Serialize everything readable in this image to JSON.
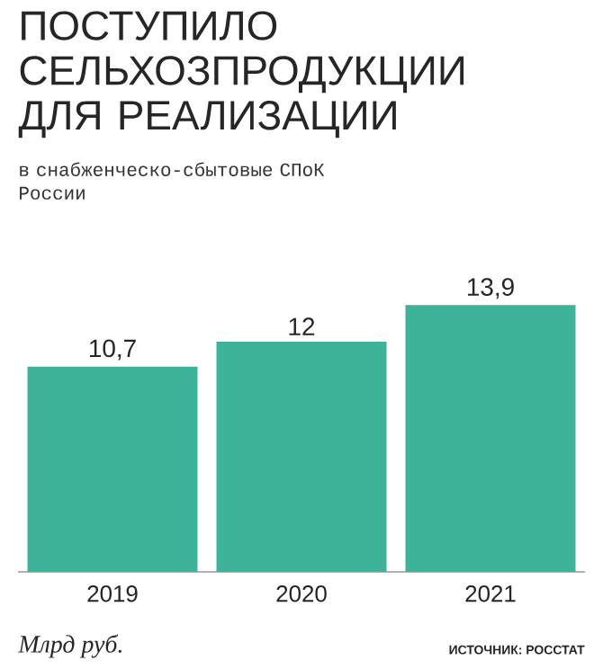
{
  "chart_data": {
    "type": "bar",
    "title": "ПОСТУПИЛО СЕЛЬХОЗПРОДУКЦИИ ДЛЯ РЕАЛИЗАЦИИ",
    "subtitle": "в снабженческо-сбытовые СПоК России",
    "categories": [
      "2019",
      "2020",
      "2021"
    ],
    "values": [
      10.7,
      12,
      13.9
    ],
    "value_labels": [
      "10,7",
      "12",
      "13,9"
    ],
    "color": "#3db39a",
    "annotations": [
      "Млрд руб.",
      "ИСТОЧНИК: РОССТАТ"
    ]
  }
}
